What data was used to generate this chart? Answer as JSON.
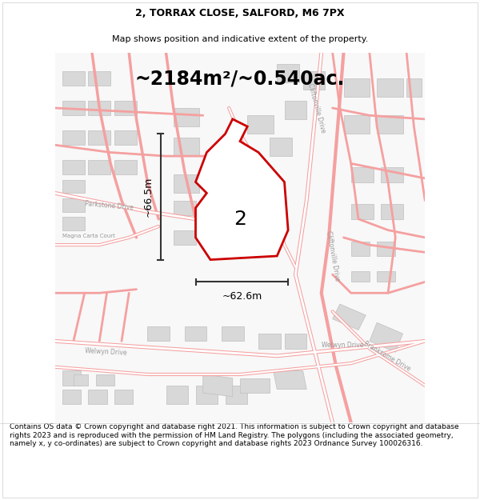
{
  "title_line1": "2, TORRAX CLOSE, SALFORD, M6 7PX",
  "title_line2": "Map shows position and indicative extent of the property.",
  "area_text": "~2184m²/~0.540ac.",
  "width_label": "~62.6m",
  "height_label": "~66.5m",
  "plot_number": "2",
  "footer_text": "Contains OS data © Crown copyright and database right 2021. This information is subject to Crown copyright and database rights 2023 and is reproduced with the permission of HM Land Registry. The polygons (including the associated geometry, namely x, y co-ordinates) are subject to Crown copyright and database rights 2023 Ordnance Survey 100026316.",
  "bg_color": "#ffffff",
  "street_color": "#f5a0a0",
  "building_fill": "#d8d8d8",
  "building_edge": "#c0c0c0",
  "property_edge": "#cc0000",
  "measurement_color": "#333333",
  "road_label_color": "#999999",
  "title_fontsize": 9,
  "subtitle_fontsize": 8,
  "area_fontsize": 17,
  "label_fontsize": 9,
  "plot_num_fontsize": 18,
  "footer_fontsize": 6.5
}
